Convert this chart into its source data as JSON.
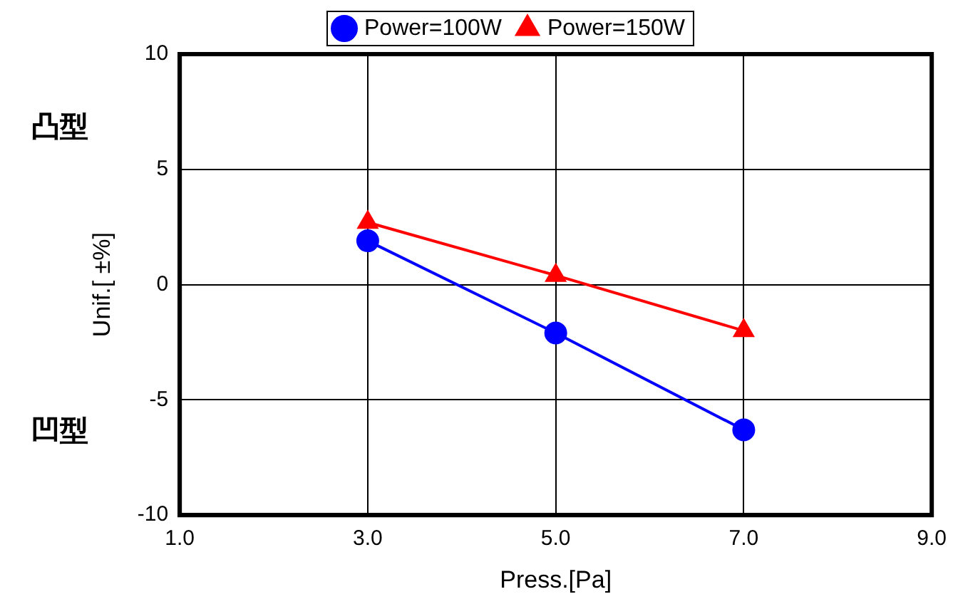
{
  "chart_data": {
    "type": "line",
    "xlabel": "Press.[Pa]",
    "ylabel": "Unif.[ ±%]",
    "annotations": [
      "凸型",
      "凹型"
    ],
    "xlim": [
      1.0,
      9.0
    ],
    "xticks": [
      {
        "value": 1,
        "label": "1.0"
      },
      {
        "value": 3,
        "label": "3.0"
      },
      {
        "value": 5,
        "label": "5.0"
      },
      {
        "value": 7,
        "label": "7.0"
      },
      {
        "value": 9,
        "label": "9.0"
      }
    ],
    "ylim": [
      -10,
      10
    ],
    "yticks": [
      -10,
      -5,
      0,
      5,
      10
    ],
    "grid": true,
    "legend": "top",
    "series": [
      {
        "name": "Power=100W",
        "color": "#0000ff",
        "marker": "circle",
        "x": [
          3,
          5,
          7
        ],
        "values": [
          1.9,
          -2.1,
          -6.3
        ]
      },
      {
        "name": "Power=150W",
        "color": "#ff0000",
        "marker": "triangle",
        "x": [
          3,
          5,
          7
        ],
        "values": [
          2.7,
          0.4,
          -2.0
        ]
      }
    ]
  }
}
